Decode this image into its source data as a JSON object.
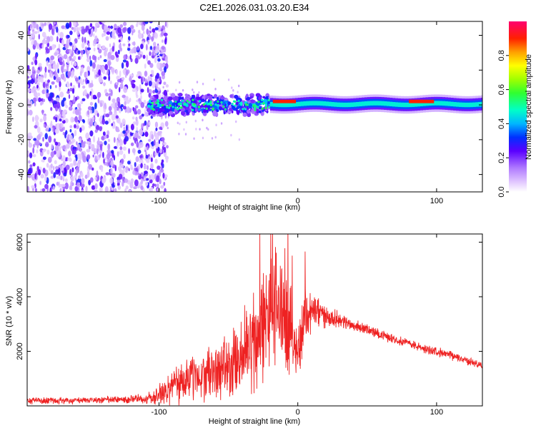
{
  "chart_data": {
    "title": "C2E1.2026.031.03.20.E34",
    "panels": [
      {
        "type": "heatmap",
        "xlabel": "Height of straight line (km)",
        "ylabel": "Frequency (Hz)",
        "xlim": [
          -195,
          133
        ],
        "ylim": [
          -50,
          48
        ],
        "xticks": [
          -100,
          0,
          100
        ],
        "xtick_labels": [
          "-100",
          "0",
          "100"
        ],
        "yticks": [
          -40,
          -20,
          0,
          20,
          40
        ],
        "ytick_labels": [
          "-40",
          "-20",
          "0",
          "20",
          "40"
        ],
        "regions": [
          {
            "name": "noise",
            "x": [
              -195,
              -100
            ],
            "freq": [
              -50,
              48
            ],
            "level": 0.25
          },
          {
            "name": "turbulent band",
            "x": [
              -108,
              -20
            ],
            "freq": [
              -8,
              8
            ],
            "level": 0.35
          },
          {
            "name": "narrow band",
            "x": [
              -20,
              133
            ],
            "freq": [
              -3,
              3
            ],
            "level": 0.45
          },
          {
            "name": "hot spot",
            "x": [
              -18,
              -2
            ],
            "freq": [
              1,
              3
            ],
            "level": 0.9
          },
          {
            "name": "hot spot",
            "x": [
              80,
              98
            ],
            "freq": [
              1,
              3
            ],
            "level": 0.9
          }
        ],
        "colorbar": {
          "label": "Normalized spectral amplitude",
          "range": [
            0,
            1
          ],
          "ticks": [
            0.0,
            0.2,
            0.4,
            0.6,
            0.8
          ],
          "tick_labels": [
            "0.0",
            "0.2",
            "0.4",
            "0.6",
            "0.8"
          ]
        }
      },
      {
        "type": "line",
        "xlabel": "Height of straight line (km)",
        "ylabel": "SNR (10 * v/v)",
        "xlim": [
          -195,
          133
        ],
        "ylim": [
          0,
          6300
        ],
        "xticks": [
          -100,
          0,
          100
        ],
        "xtick_labels": [
          "-100",
          "0",
          "100"
        ],
        "yticks": [
          2000,
          4000,
          6000
        ],
        "ytick_labels": [
          "2000",
          "4000",
          "6000"
        ],
        "series": [
          {
            "name": "SNR",
            "color": "#ee2222",
            "x": [
              -195,
              -160,
              -130,
              -110,
              -100,
              -90,
              -80,
              -70,
              -60,
              -50,
              -40,
              -30,
              -20,
              -15,
              -10,
              -5,
              0,
              5,
              10,
              15,
              20,
              30,
              40,
              50,
              60,
              70,
              80,
              90,
              100,
              110,
              120,
              133
            ],
            "y": [
              200,
              200,
              230,
              250,
              400,
              700,
              1000,
              1100,
              1250,
              1400,
              1700,
              2500,
              3300,
              3700,
              3400,
              2800,
              1900,
              3300,
              3500,
              3400,
              3300,
              3150,
              2950,
              2800,
              2600,
              2450,
              2300,
              2100,
              2000,
              1850,
              1700,
              1450
            ],
            "spread": [
              150,
              150,
              180,
              200,
              450,
              900,
              1100,
              1000,
              1300,
              1500,
              1700,
              2500,
              2400,
              2900,
              2700,
              1800,
              1300,
              1500,
              900,
              900,
              450,
              350,
              250,
              250,
              220,
              200,
              200,
              200,
              200,
              200,
              180,
              170
            ]
          }
        ]
      }
    ]
  }
}
